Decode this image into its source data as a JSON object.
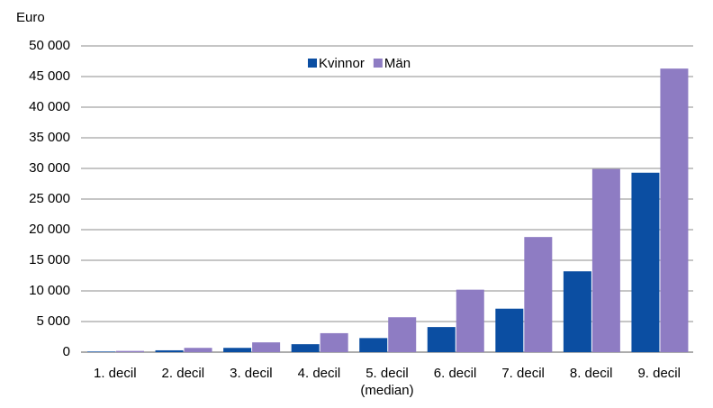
{
  "chart_data": {
    "type": "bar",
    "y_label": "Euro",
    "categories": [
      "1. decil",
      "2. decil",
      "3. decil",
      "4. decil",
      "5. decil (median)",
      "6. decil",
      "7. decil",
      "8. decil",
      "9. decil"
    ],
    "series": [
      {
        "name": "Kvinnor",
        "color": "#0b4ea2",
        "values": [
          100,
          300,
          700,
          1300,
          2300,
          4100,
          7100,
          13200,
          29300
        ]
      },
      {
        "name": "Män",
        "color": "#8e7cc3",
        "values": [
          200,
          700,
          1600,
          3100,
          5700,
          10200,
          18800,
          29900,
          46300
        ]
      }
    ],
    "ylim": [
      0,
      50000
    ],
    "yticks": [
      0,
      {
        "value": 5000,
        "label": "5 000"
      },
      {
        "value": 10000,
        "label": "10 000"
      },
      {
        "value": 15000,
        "label": "15 000"
      },
      {
        "value": 20000,
        "label": "20 000"
      },
      {
        "value": 25000,
        "label": "25 000"
      },
      {
        "value": 30000,
        "label": "30 000"
      },
      {
        "value": 35000,
        "label": "35 000"
      },
      {
        "value": 40000,
        "label": "40 000"
      },
      {
        "value": 45000,
        "label": "45 000"
      },
      {
        "value": 50000,
        "label": "50 000"
      }
    ],
    "grid": true,
    "legend": "top"
  }
}
